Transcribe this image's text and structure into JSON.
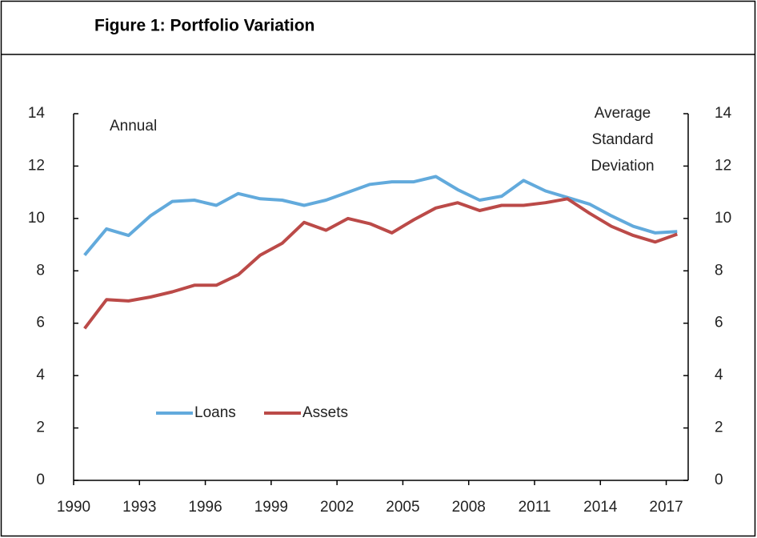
{
  "chart_data": {
    "type": "line",
    "title": "Figure 1: Portfolio Variation",
    "left_note": "Annual",
    "right_note_lines": [
      "Average",
      "Standard",
      "Deviation"
    ],
    "categories": [
      "1990",
      null,
      null,
      "1993",
      null,
      null,
      "1996",
      null,
      null,
      "1999",
      null,
      null,
      "2002",
      null,
      null,
      "2005",
      null,
      null,
      "2008",
      null,
      null,
      "2011",
      null,
      null,
      "2014",
      null,
      null,
      "2017"
    ],
    "series": [
      {
        "name": "Loans",
        "color": "#62aadc",
        "values": [
          8.6,
          9.6,
          9.35,
          10.1,
          10.65,
          10.7,
          10.5,
          10.95,
          10.75,
          10.7,
          10.5,
          10.7,
          11.0,
          11.3,
          11.4,
          11.4,
          11.6,
          11.1,
          10.7,
          10.85,
          11.45,
          11.05,
          10.8,
          10.55,
          10.1,
          9.7,
          9.45,
          9.5
        ]
      },
      {
        "name": "Assets",
        "color": "#bb4a48",
        "values": [
          5.8,
          6.9,
          6.85,
          7.0,
          7.2,
          7.45,
          7.45,
          7.85,
          8.6,
          9.05,
          9.85,
          9.55,
          10.0,
          9.8,
          9.45,
          9.95,
          10.4,
          10.6,
          10.3,
          10.5,
          10.5,
          10.6,
          10.75,
          10.2,
          9.7,
          9.35,
          9.1,
          9.4
        ]
      }
    ],
    "ylim": [
      0,
      14
    ],
    "yticks": [
      0,
      2,
      4,
      6,
      8,
      10,
      12,
      14
    ],
    "y2lim": [
      0,
      14
    ],
    "y2ticks": [
      0,
      2,
      4,
      6,
      8,
      10,
      12,
      14
    ]
  }
}
